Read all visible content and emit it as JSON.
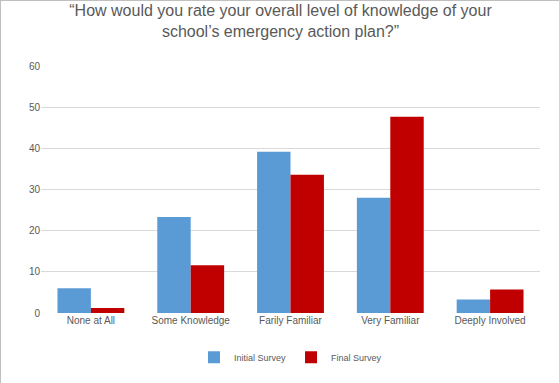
{
  "chart_data": {
    "type": "bar",
    "title": "“How would you rate your overall level of knowledge of your school’s emergency action plan?”",
    "categories": [
      "None at All",
      "Some Knowledge",
      "Farily Familiar",
      "Very Familiar",
      "Deeply Involved"
    ],
    "series": [
      {
        "name": "Initial Survey",
        "color": "#5b9bd5",
        "values": [
          6.0,
          23.3,
          39.2,
          28.0,
          3.3
        ]
      },
      {
        "name": "Final Survey",
        "color": "#c00000",
        "values": [
          1.2,
          11.6,
          33.6,
          47.7,
          5.7
        ]
      }
    ],
    "ylim": [
      0,
      60
    ],
    "yticks": [
      0,
      10,
      20,
      30,
      40,
      50,
      60
    ],
    "grid": true,
    "legend": "bottom"
  }
}
